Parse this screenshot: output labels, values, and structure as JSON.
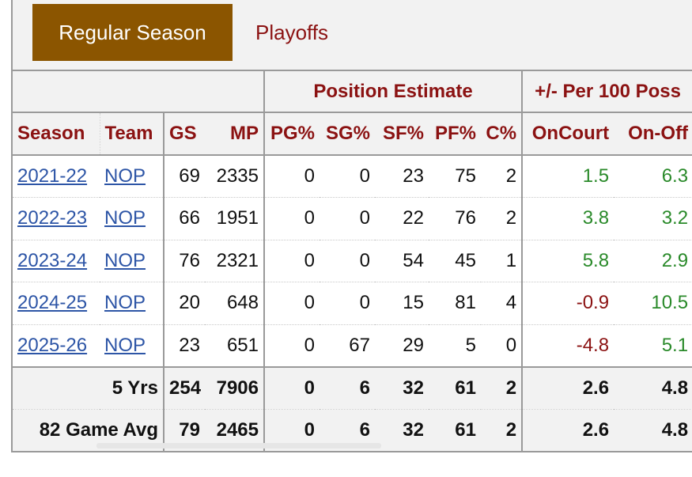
{
  "tabs": {
    "regular_season": "Regular Season",
    "playoffs": "Playoffs"
  },
  "over_headers": {
    "position_estimate": "Position Estimate",
    "plus_minus": "+/- Per 100 Poss"
  },
  "columns": [
    "Season",
    "Team",
    "GS",
    "MP",
    "PG%",
    "SG%",
    "SF%",
    "PF%",
    "C%",
    "OnCourt",
    "On-Off"
  ],
  "rows": [
    {
      "season": "2021-22",
      "team": "NOP",
      "gs": "69",
      "mp": "2335",
      "pg": "0",
      "sg": "0",
      "sf": "23",
      "pf": "75",
      "c": "2",
      "oncourt": "1.5",
      "onoff": "6.3"
    },
    {
      "season": "2022-23",
      "team": "NOP",
      "gs": "66",
      "mp": "1951",
      "pg": "0",
      "sg": "0",
      "sf": "22",
      "pf": "76",
      "c": "2",
      "oncourt": "3.8",
      "onoff": "3.2"
    },
    {
      "season": "2023-24",
      "team": "NOP",
      "gs": "76",
      "mp": "2321",
      "pg": "0",
      "sg": "0",
      "sf": "54",
      "pf": "45",
      "c": "1",
      "oncourt": "5.8",
      "onoff": "2.9"
    },
    {
      "season": "2024-25",
      "team": "NOP",
      "gs": "20",
      "mp": "648",
      "pg": "0",
      "sg": "0",
      "sf": "15",
      "pf": "81",
      "c": "4",
      "oncourt": "-0.9",
      "onoff": "10.5"
    },
    {
      "season": "2025-26",
      "team": "NOP",
      "gs": "23",
      "mp": "651",
      "pg": "0",
      "sg": "67",
      "sf": "29",
      "pf": "5",
      "c": "0",
      "oncourt": "-4.8",
      "onoff": "5.1"
    }
  ],
  "totals": [
    {
      "label": "5 Yrs",
      "gs": "254",
      "mp": "7906",
      "pg": "0",
      "sg": "6",
      "sf": "32",
      "pf": "61",
      "c": "2",
      "oncourt": "2.6",
      "onoff": "4.8"
    },
    {
      "label": "82 Game Avg",
      "gs": "79",
      "mp": "2465",
      "pg": "0",
      "sg": "6",
      "sf": "32",
      "pf": "61",
      "c": "2",
      "oncourt": "2.6",
      "onoff": "4.8"
    }
  ],
  "colors": {
    "accent_tab": "#8b5500",
    "header_text": "#8b1212",
    "link": "#2d55a6",
    "positive": "#2a8a2a",
    "negative": "#8b1212"
  }
}
